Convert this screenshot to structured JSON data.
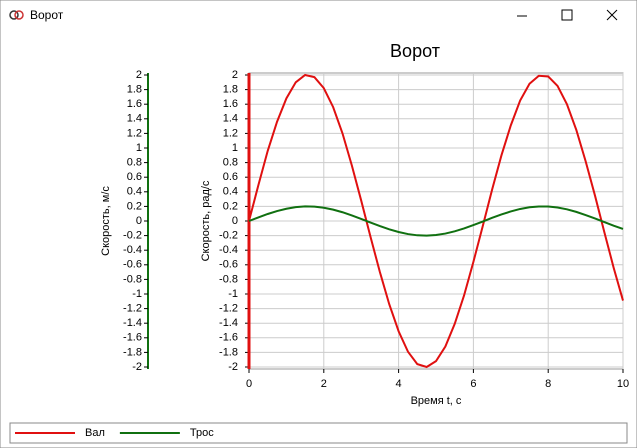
{
  "window": {
    "title": "Ворот"
  },
  "chart_data": {
    "type": "line",
    "title": "Ворот",
    "x_label": "Время t, с",
    "y_label": "Скорость, рад/с",
    "y2_label": "Скорость, м/с",
    "x": [
      0,
      0.25,
      0.5,
      0.75,
      1,
      1.25,
      1.5,
      1.75,
      2,
      2.25,
      2.5,
      2.75,
      3,
      3.25,
      3.5,
      3.75,
      4,
      4.25,
      4.5,
      4.75,
      5,
      5.25,
      5.5,
      5.75,
      6,
      6.25,
      6.5,
      6.75,
      7,
      7.25,
      7.5,
      7.75,
      8,
      8.25,
      8.5,
      8.75,
      9,
      9.25,
      9.5,
      9.75,
      10
    ],
    "series": [
      {
        "name": "Вал",
        "color": "#e01010",
        "values": [
          0,
          0.49,
          0.96,
          1.36,
          1.68,
          1.9,
          2,
          1.97,
          1.82,
          1.56,
          1.2,
          0.76,
          0.28,
          -0.22,
          -0.7,
          -1.14,
          -1.51,
          -1.79,
          -1.96,
          -2,
          -1.92,
          -1.72,
          -1.41,
          -1.02,
          -0.56,
          -0.07,
          0.43,
          0.9,
          1.31,
          1.65,
          1.88,
          1.99,
          1.98,
          1.85,
          1.6,
          1.25,
          0.82,
          0.35,
          -0.15,
          -0.64,
          -1.09
        ]
      },
      {
        "name": "Трос",
        "color": "#107010",
        "axis": "y2",
        "values": [
          0,
          0.049,
          0.096,
          0.136,
          0.168,
          0.19,
          0.2,
          0.197,
          0.182,
          0.156,
          0.12,
          0.076,
          0.028,
          -0.022,
          -0.07,
          -0.114,
          -0.151,
          -0.179,
          -0.196,
          -0.2,
          -0.192,
          -0.172,
          -0.141,
          -0.102,
          -0.056,
          -0.007,
          0.043,
          0.09,
          0.131,
          0.165,
          0.188,
          0.199,
          0.198,
          0.185,
          0.16,
          0.125,
          0.082,
          0.035,
          -0.015,
          -0.064,
          -0.109
        ]
      }
    ],
    "xlim": [
      0,
      10
    ],
    "xticks": [
      0,
      2,
      4,
      6,
      8,
      10
    ],
    "ylim": [
      -2,
      2
    ],
    "yticks": [
      -2,
      -1.8,
      -1.6,
      -1.4,
      -1.2,
      -1,
      -0.8,
      -0.6,
      -0.4,
      -0.2,
      0,
      0.2,
      0.4,
      0.6,
      0.8,
      1,
      1.2,
      1.4,
      1.6,
      1.8,
      2
    ],
    "y2lim": [
      -2,
      2
    ],
    "y2ticks": [
      -2,
      -1.8,
      -1.6,
      -1.4,
      -1.2,
      -1,
      -0.8,
      -0.6,
      -0.4,
      -0.2,
      0,
      0.2,
      0.4,
      0.6,
      0.8,
      1,
      1.2,
      1.4,
      1.6,
      1.8,
      2
    ],
    "grid": true,
    "legend": "bottom"
  }
}
